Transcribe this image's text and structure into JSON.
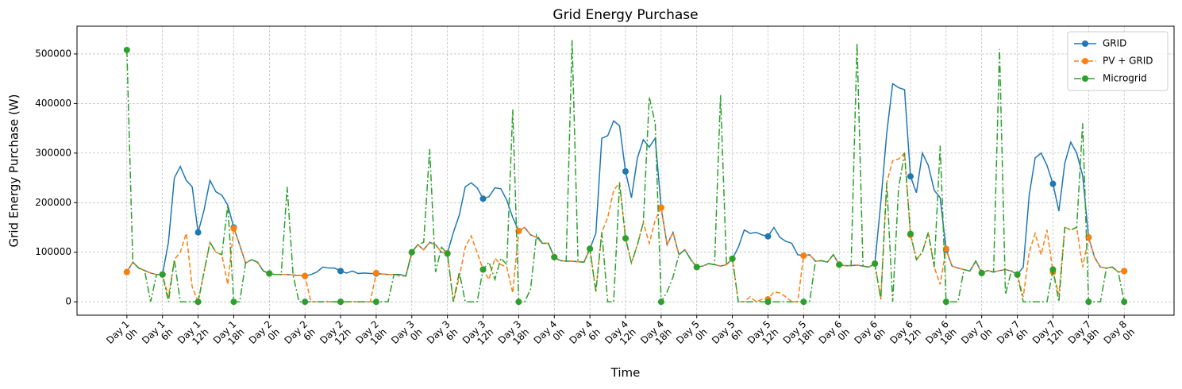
{
  "chart_data": {
    "type": "line",
    "title": "Grid Energy Purchase",
    "xlabel": "Time",
    "ylabel": "Grid Energy Purchase (W)",
    "x": [
      0,
      1,
      2,
      3,
      4,
      5,
      6,
      7,
      8,
      9,
      10,
      11,
      12,
      13,
      14,
      15,
      16,
      17,
      18,
      19,
      20,
      21,
      22,
      23,
      24,
      25,
      26,
      27,
      28,
      29,
      30,
      31,
      32,
      33,
      34,
      35,
      36,
      37,
      38,
      39,
      40,
      41,
      42,
      43,
      44,
      45,
      46,
      47,
      48,
      49,
      50,
      51,
      52,
      53,
      54,
      55,
      56,
      57,
      58,
      59,
      60,
      61,
      62,
      63,
      64,
      65,
      66,
      67,
      68,
      69,
      70,
      71,
      72,
      73,
      74,
      75,
      76,
      77,
      78,
      79,
      80,
      81,
      82,
      83,
      84,
      85,
      86,
      87,
      88,
      89,
      90,
      91,
      92,
      93,
      94,
      95,
      96,
      97,
      98,
      99,
      100,
      101,
      102,
      103,
      104,
      105,
      106,
      107,
      108,
      109,
      110,
      111,
      112,
      113,
      114,
      115,
      116,
      117,
      118,
      119,
      120,
      121,
      122,
      123,
      124,
      125,
      126,
      127,
      128,
      129,
      130,
      131,
      132,
      133,
      134,
      135,
      136,
      137,
      138,
      139,
      140,
      141,
      142,
      143,
      144,
      145,
      146,
      147,
      148,
      149,
      150,
      151,
      152,
      153,
      154,
      155,
      156,
      157,
      158,
      159,
      160,
      161,
      162,
      163,
      164,
      165,
      166,
      167,
      168
    ],
    "series": [
      {
        "name": "GRID",
        "color": "#1f77b4",
        "linestyle": "solid",
        "values": [
          60000,
          80000,
          68000,
          63000,
          58000,
          55000,
          55000,
          120000,
          250000,
          273000,
          245000,
          232000,
          140000,
          185000,
          245000,
          222000,
          215000,
          195000,
          150000,
          115000,
          78000,
          85000,
          80000,
          62000,
          57000,
          55000,
          55000,
          55000,
          54000,
          53000,
          52000,
          55000,
          60000,
          70000,
          68000,
          68000,
          62000,
          58000,
          62000,
          57000,
          58000,
          57000,
          57000,
          56000,
          55000,
          55000,
          55000,
          52000,
          100000,
          115000,
          105000,
          120000,
          115000,
          100000,
          98000,
          140000,
          175000,
          232000,
          240000,
          230000,
          208000,
          212000,
          230000,
          228000,
          205000,
          170000,
          143000,
          150000,
          135000,
          130000,
          118000,
          118000,
          90000,
          83000,
          82000,
          82000,
          81000,
          80000,
          107000,
          138000,
          330000,
          335000,
          365000,
          355000,
          263000,
          210000,
          290000,
          327000,
          312000,
          330000,
          190000,
          115000,
          140000,
          95000,
          105000,
          85000,
          70000,
          72000,
          77000,
          75000,
          72000,
          75000,
          87000,
          110000,
          145000,
          138000,
          140000,
          135000,
          132000,
          150000,
          130000,
          122000,
          118000,
          95000,
          93000,
          95000,
          82000,
          83000,
          80000,
          95000,
          75000,
          73000,
          73000,
          74000,
          72000,
          70000,
          77000,
          200000,
          340000,
          440000,
          432000,
          428000,
          253000,
          220000,
          300000,
          275000,
          225000,
          210000,
          105000,
          72000,
          68000,
          65000,
          62000,
          82000,
          58000,
          63000,
          60000,
          63000,
          65000,
          62000,
          55000,
          70000,
          215000,
          290000,
          300000,
          275000,
          238000,
          183000,
          280000,
          322000,
          300000,
          255000,
          130000,
          90000,
          70000,
          68000,
          70000,
          60000,
          62000
        ]
      },
      {
        "name": "PV + GRID",
        "color": "#ff7f0e",
        "linestyle": "dashed",
        "values": [
          60000,
          80000,
          68000,
          63000,
          58000,
          55000,
          55000,
          10000,
          85000,
          100000,
          138000,
          30000,
          0,
          60000,
          120000,
          100000,
          95000,
          35000,
          148000,
          115000,
          78000,
          85000,
          80000,
          62000,
          57000,
          55000,
          55000,
          55000,
          54000,
          53000,
          52000,
          0,
          0,
          0,
          0,
          0,
          0,
          0,
          0,
          0,
          0,
          0,
          58000,
          56000,
          55000,
          55000,
          52000,
          52000,
          100000,
          115000,
          105000,
          120000,
          115000,
          100000,
          98000,
          0,
          50000,
          110000,
          133000,
          100000,
          65000,
          45000,
          88000,
          75000,
          70000,
          18000,
          143000,
          150000,
          135000,
          130000,
          118000,
          118000,
          90000,
          83000,
          82000,
          82000,
          81000,
          80000,
          107000,
          20000,
          140000,
          170000,
          225000,
          240000,
          128000,
          78000,
          115000,
          160000,
          118000,
          165000,
          190000,
          115000,
          140000,
          95000,
          105000,
          85000,
          70000,
          72000,
          77000,
          75000,
          72000,
          75000,
          87000,
          0,
          0,
          10000,
          0,
          5000,
          5000,
          20000,
          18000,
          10000,
          0,
          0,
          93000,
          95000,
          82000,
          83000,
          80000,
          95000,
          75000,
          73000,
          73000,
          74000,
          72000,
          70000,
          77000,
          5000,
          240000,
          285000,
          288000,
          300000,
          135000,
          85000,
          100000,
          140000,
          70000,
          35000,
          107000,
          72000,
          68000,
          65000,
          62000,
          82000,
          58000,
          63000,
          60000,
          63000,
          65000,
          62000,
          55000,
          10000,
          100000,
          138000,
          95000,
          145000,
          60000,
          15000,
          150000,
          145000,
          150000,
          70000,
          130000,
          90000,
          70000,
          68000,
          70000,
          60000,
          62000
        ]
      },
      {
        "name": "Microgrid",
        "color": "#2ca02c",
        "linestyle": "dashdot",
        "values": [
          508000,
          80000,
          68000,
          63000,
          0,
          55000,
          55000,
          0,
          85000,
          0,
          0,
          0,
          0,
          60000,
          120000,
          100000,
          95000,
          195000,
          0,
          0,
          78000,
          85000,
          80000,
          62000,
          57000,
          55000,
          55000,
          232000,
          54000,
          0,
          0,
          0,
          0,
          0,
          0,
          0,
          0,
          0,
          0,
          0,
          0,
          0,
          0,
          0,
          0,
          55000,
          55000,
          52000,
          100000,
          115000,
          120000,
          308000,
          60000,
          110000,
          97000,
          0,
          60000,
          0,
          0,
          0,
          65000,
          80000,
          45000,
          88000,
          75000,
          388000,
          0,
          0,
          25000,
          135000,
          118000,
          118000,
          90000,
          83000,
          82000,
          528000,
          81000,
          80000,
          107000,
          20000,
          140000,
          0,
          0,
          240000,
          128000,
          78000,
          115000,
          160000,
          413000,
          360000,
          0,
          20000,
          50000,
          95000,
          105000,
          85000,
          70000,
          72000,
          77000,
          75000,
          417000,
          75000,
          87000,
          0,
          0,
          0,
          0,
          0,
          0,
          0,
          0,
          0,
          0,
          0,
          0,
          0,
          82000,
          83000,
          80000,
          95000,
          75000,
          73000,
          73000,
          522000,
          72000,
          70000,
          77000,
          5000,
          240000,
          0,
          230000,
          300000,
          137000,
          85000,
          100000,
          140000,
          70000,
          315000,
          0,
          0,
          0,
          65000,
          62000,
          82000,
          58000,
          63000,
          60000,
          510000,
          15000,
          62000,
          55000,
          0,
          0,
          0,
          0,
          0,
          65000,
          0,
          150000,
          145000,
          150000,
          360000,
          0,
          0,
          0,
          68000,
          70000,
          60000,
          0
        ]
      }
    ],
    "markevery": 6,
    "xlim": [
      -8.4,
      176.4
    ],
    "ylim": [
      -27000,
      556000
    ],
    "yticks": [
      0,
      100000,
      200000,
      300000,
      400000,
      500000
    ],
    "xticks": [
      {
        "value": 0,
        "label": "Day 1\n0h"
      },
      {
        "value": 6,
        "label": "Day 1\n6h"
      },
      {
        "value": 12,
        "label": "Day 1\n12h"
      },
      {
        "value": 18,
        "label": "Day 1\n18h"
      },
      {
        "value": 24,
        "label": "Day 2\n0h"
      },
      {
        "value": 30,
        "label": "Day 2\n6h"
      },
      {
        "value": 36,
        "label": "Day 2\n12h"
      },
      {
        "value": 42,
        "label": "Day 2\n18h"
      },
      {
        "value": 48,
        "label": "Day 3\n0h"
      },
      {
        "value": 54,
        "label": "Day 3\n6h"
      },
      {
        "value": 60,
        "label": "Day 3\n12h"
      },
      {
        "value": 66,
        "label": "Day 3\n18h"
      },
      {
        "value": 72,
        "label": "Day 4\n0h"
      },
      {
        "value": 78,
        "label": "Day 4\n6h"
      },
      {
        "value": 84,
        "label": "Day 4\n12h"
      },
      {
        "value": 90,
        "label": "Day 4\n18h"
      },
      {
        "value": 96,
        "label": "Day 5\n0h"
      },
      {
        "value": 102,
        "label": "Day 5\n6h"
      },
      {
        "value": 108,
        "label": "Day 5\n12h"
      },
      {
        "value": 114,
        "label": "Day 5\n18h"
      },
      {
        "value": 120,
        "label": "Day 6\n0h"
      },
      {
        "value": 126,
        "label": "Day 6\n6h"
      },
      {
        "value": 132,
        "label": "Day 6\n12h"
      },
      {
        "value": 138,
        "label": "Day 6\n18h"
      },
      {
        "value": 144,
        "label": "Day 7\n0h"
      },
      {
        "value": 150,
        "label": "Day 7\n6h"
      },
      {
        "value": 156,
        "label": "Day 7\n12h"
      },
      {
        "value": 162,
        "label": "Day 7\n18h"
      },
      {
        "value": 168,
        "label": "Day 8\n0h"
      }
    ],
    "grid": true,
    "legend": "upper right"
  }
}
